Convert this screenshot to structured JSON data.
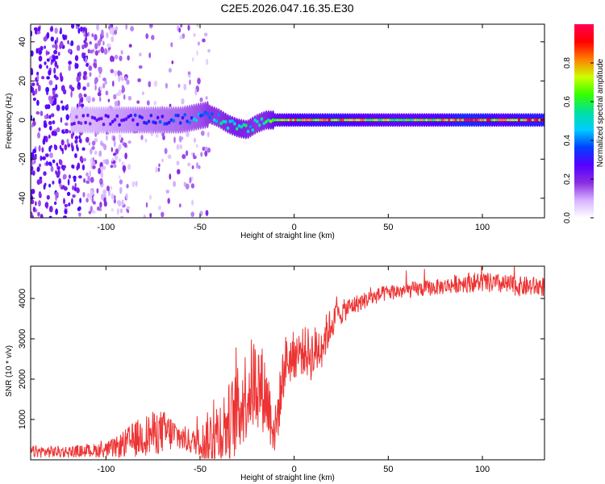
{
  "title": "C2E5.2026.047.16.35.E30",
  "chart_data": [
    {
      "type": "heatmap",
      "title": "C2E5.2026.047.16.35.E30",
      "xlabel": "Height of straight line (km)",
      "ylabel": "Frequency (Hz)",
      "xlim": [
        -140,
        133
      ],
      "ylim": [
        -50,
        49
      ],
      "xticks": [
        -100,
        -50,
        0,
        50,
        100
      ],
      "yticks": [
        -40,
        -20,
        0,
        20,
        40
      ],
      "colorbar": {
        "label": "Normalized spectral amplitude",
        "range": [
          0,
          1
        ],
        "ticks": [
          "0.0",
          "0.2",
          "0.4",
          "0.6",
          "0.8"
        ],
        "colors": [
          "#ffffff",
          "#d6b3ff",
          "#8a2be2",
          "#5500ff",
          "#0040ff",
          "#00ccff",
          "#00e0a0",
          "#33ff00",
          "#ccff00",
          "#ff8000",
          "#ff0000",
          "#ff0055"
        ]
      },
      "ridge": {
        "x": [
          -115,
          -100,
          -80,
          -60,
          -50,
          -45,
          -40,
          -35,
          -30,
          -25,
          -20,
          -15,
          -10,
          0,
          20,
          40,
          60,
          80,
          90,
          100,
          110,
          120,
          133
        ],
        "freq": [
          0,
          0,
          0,
          0,
          2,
          3,
          1,
          -2,
          -4,
          -5,
          -2,
          0,
          0,
          0,
          0,
          0,
          0,
          0,
          0,
          0,
          0,
          0,
          0
        ],
        "amplitude": [
          0.22,
          0.28,
          0.35,
          0.4,
          0.45,
          0.5,
          0.5,
          0.55,
          0.6,
          0.55,
          0.5,
          0.55,
          0.7,
          0.8,
          0.85,
          0.75,
          0.72,
          0.8,
          0.95,
          0.9,
          0.75,
          0.85,
          0.9
        ]
      }
    },
    {
      "type": "line",
      "xlabel": "Height of straight line (km)",
      "ylabel": "SNR (10 * v/v)",
      "xlim": [
        -140,
        133
      ],
      "ylim": [
        0,
        4800
      ],
      "xticks": [
        -100,
        -50,
        0,
        50,
        100
      ],
      "yticks": [
        1000,
        2000,
        3000,
        4000
      ],
      "color": "#ee3333",
      "series": [
        {
          "name": "SNR",
          "x": [
            -140,
            -120,
            -110,
            -100,
            -95,
            -90,
            -85,
            -80,
            -75,
            -70,
            -65,
            -60,
            -55,
            -50,
            -45,
            -40,
            -35,
            -30,
            -25,
            -20,
            -15,
            -10,
            -5,
            0,
            5,
            10,
            15,
            20,
            25,
            30,
            40,
            50,
            60,
            70,
            80,
            90,
            100,
            110,
            120,
            133
          ],
          "y": [
            200,
            200,
            220,
            250,
            300,
            400,
            500,
            600,
            650,
            700,
            650,
            550,
            450,
            450,
            500,
            700,
            900,
            1200,
            1700,
            2000,
            1600,
            700,
            2400,
            2600,
            2700,
            2600,
            2900,
            3400,
            3650,
            3800,
            4000,
            4150,
            4200,
            4250,
            4300,
            4400,
            4400,
            4350,
            4300,
            4300
          ],
          "noise": [
            150,
            150,
            150,
            200,
            250,
            350,
            450,
            500,
            550,
            550,
            450,
            350,
            300,
            350,
            800,
            900,
            1000,
            1100,
            1200,
            1200,
            1000,
            700,
            700,
            600,
            600,
            700,
            600,
            400,
            300,
            250,
            200,
            200,
            200,
            200,
            200,
            250,
            250,
            250,
            250,
            250
          ]
        }
      ]
    }
  ]
}
